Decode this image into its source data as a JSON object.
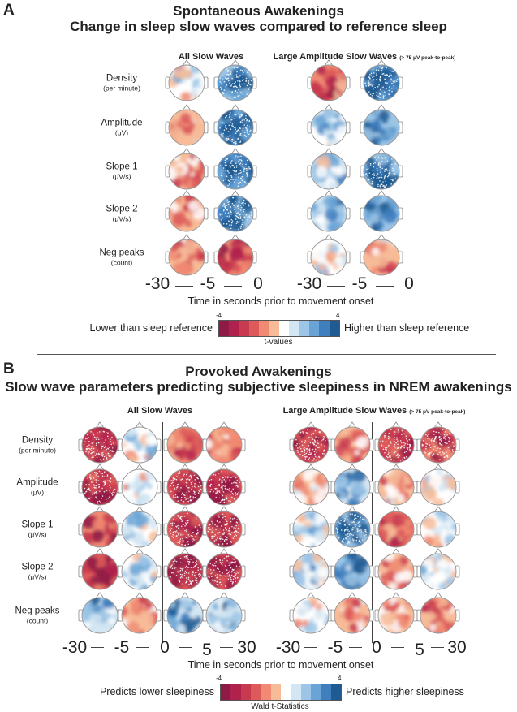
{
  "panelA": {
    "letter": "A",
    "title_line1": "Spontaneous Awakenings",
    "title_line2": "Change in sleep slow waves compared to reference sleep",
    "col_header_all": "All Slow Waves",
    "col_header_large": "Large Amplitude Slow Waves",
    "col_header_large_note": "(> 75 μV peak-to-peak)",
    "rows": [
      {
        "label": "Density",
        "unit": "(per minute)"
      },
      {
        "label": "Amplitude",
        "unit": "(μV)"
      },
      {
        "label": "Slope 1",
        "unit": "(μV/s)"
      },
      {
        "label": "Slope 2",
        "unit": "(μV/s)"
      },
      {
        "label": "Neg peaks",
        "unit": "(count)"
      }
    ],
    "time_ticks_left": [
      "-30",
      "-5",
      "0"
    ],
    "time_ticks_right": [
      "-30",
      "-5",
      "0"
    ],
    "x_axis_label": "Time in seconds prior to movement onset",
    "colorbar": {
      "min_label": "-4",
      "max_label": "4",
      "left_label": "Lower than sleep reference",
      "right_label": "Higher than sleep reference",
      "caption": "t-values"
    },
    "topomaps_t_values": [
      [
        0.8,
        3.6,
        -2.0,
        3.8
      ],
      [
        -0.9,
        3.8,
        1.2,
        3.0
      ],
      [
        -1.0,
        3.7,
        1.5,
        3.4
      ],
      [
        -0.9,
        3.6,
        1.8,
        3.2
      ],
      [
        -1.2,
        -2.4,
        0.2,
        -0.8
      ]
    ],
    "significant_electrodes": [
      [
        false,
        true,
        false,
        true
      ],
      [
        false,
        true,
        false,
        false
      ],
      [
        false,
        true,
        false,
        true
      ],
      [
        false,
        true,
        false,
        false
      ],
      [
        false,
        false,
        false,
        false
      ]
    ]
  },
  "panelB": {
    "letter": "B",
    "title_line1": "Provoked Awakenings",
    "title_line2": "Slow wave parameters predicting subjective sleepiness in NREM awakenings",
    "col_header_all": "All Slow Waves",
    "col_header_large": "Large Amplitude Slow Waves",
    "col_header_large_note": "(> 75 μV peak-to-peak)",
    "rows": [
      {
        "label": "Density",
        "unit": "(per minute)"
      },
      {
        "label": "Amplitude",
        "unit": "(μV)"
      },
      {
        "label": "Slope 1",
        "unit": "(μV/s)"
      },
      {
        "label": "Slope 2",
        "unit": "(μV/s)"
      },
      {
        "label": "Neg peaks",
        "unit": "(count)"
      }
    ],
    "time_ticks_left": [
      "-30",
      "-5",
      "0",
      "5",
      "30"
    ],
    "time_ticks_right": [
      "-30",
      "-5",
      "0",
      "5",
      "30"
    ],
    "x_axis_label": "Time in seconds prior to movement onset",
    "colorbar": {
      "min_label": "-4",
      "max_label": "4",
      "left_label": "Predicts lower sleepiness",
      "right_label": "Predicts higher sleepiness",
      "caption": "Wald t-Statistics"
    },
    "topomaps_t_values": [
      [
        -2.6,
        0.7,
        -1.6,
        -1.5,
        -2.8,
        -1.0,
        -2.6,
        -2.2
      ],
      [
        -2.8,
        0.8,
        -3.0,
        -3.4,
        -0.4,
        2.4,
        -0.8,
        0.6
      ],
      [
        -2.4,
        1.0,
        -3.0,
        -3.3,
        0.9,
        2.8,
        -1.4,
        0.6
      ],
      [
        -2.6,
        1.2,
        -3.0,
        -3.4,
        1.3,
        2.8,
        -1.0,
        0.8
      ],
      [
        2.0,
        -0.7,
        2.3,
        2.0,
        0.3,
        -1.0,
        -0.8,
        -1.2
      ]
    ],
    "significant_electrodes": [
      [
        true,
        false,
        false,
        false,
        true,
        false,
        true,
        true
      ],
      [
        true,
        false,
        true,
        true,
        false,
        false,
        false,
        false
      ],
      [
        false,
        false,
        true,
        true,
        false,
        true,
        false,
        false
      ],
      [
        false,
        false,
        true,
        true,
        false,
        false,
        false,
        false
      ],
      [
        false,
        false,
        false,
        false,
        false,
        false,
        false,
        false
      ]
    ]
  },
  "colormap": [
    "#8e1a45",
    "#b0214d",
    "#c83a4f",
    "#dd5a5a",
    "#f08a72",
    "#f7bb98",
    "#ffffff",
    "#d3e6f3",
    "#9cc5e6",
    "#6aa4d6",
    "#3f7fbe",
    "#1f5a92"
  ]
}
